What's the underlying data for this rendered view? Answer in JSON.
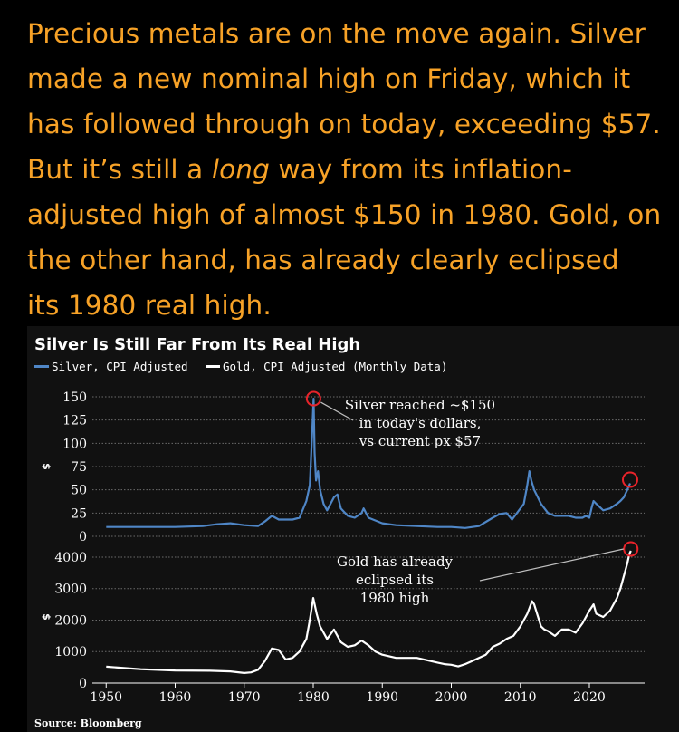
{
  "article": {
    "line1": "Precious metals are on the move again. Silver",
    "line2": "made a new nominal high on Friday, which it",
    "line3": "has followed through on today, exceeding $57.",
    "line4_before": "But it’s still a ",
    "line4_emphasis": "long",
    "line4_after": " way from its inflation-",
    "line5": "adjusted high of almost $150 in 1980. Gold, on",
    "line6": "the other hand, has already clearly eclipsed",
    "line7": "its 1980 real high."
  },
  "colors": {
    "text": "#f7a227",
    "chart_bg": "#111111",
    "silver_line": "#4f86c6",
    "gold_line": "#ffffff",
    "highlight_circle": "#e8232a"
  },
  "chart_data": [
    {
      "type": "line",
      "title": "Silver Is Still Far From Its Real High",
      "legend": [
        "Silver, CPI Adjusted",
        "Gold, CPI Adjusted (Monthly Data)"
      ],
      "ylabel": "$",
      "ylim": [
        0,
        150
      ],
      "yticks": [
        "0",
        "25",
        "50",
        "75",
        "100",
        "125",
        "150"
      ],
      "annotation": [
        "Silver reached ~$150",
        "in today's dollars,",
        "vs current px $57"
      ],
      "series": [
        {
          "name": "Silver, CPI Adjusted",
          "x": [
            1950,
            1955,
            1960,
            1964,
            1966,
            1968,
            1970,
            1972,
            1973,
            1974,
            1975,
            1977,
            1978,
            1979,
            1979.5,
            1979.9,
            1980.05,
            1980.2,
            1980.4,
            1980.7,
            1981,
            1981.5,
            1982,
            1983,
            1983.5,
            1984,
            1985,
            1986,
            1987,
            1987.3,
            1988,
            1990,
            1992,
            1995,
            1998,
            2000,
            2002,
            2004,
            2006,
            2007,
            2008,
            2008.8,
            2009,
            2010,
            2010.5,
            2011,
            2011.3,
            2011.6,
            2012,
            2013,
            2013.5,
            2014,
            2015,
            2016,
            2017,
            2018,
            2019,
            2019.5,
            2020,
            2020.3,
            2020.6,
            2021,
            2022,
            2023,
            2024,
            2024.5,
            2025,
            2025.5,
            2025.9
          ],
          "values": [
            10,
            10,
            10,
            11,
            13,
            14,
            12,
            11,
            16,
            22,
            18,
            18,
            20,
            38,
            55,
            120,
            148,
            90,
            60,
            70,
            50,
            35,
            28,
            42,
            45,
            30,
            22,
            20,
            25,
            30,
            20,
            14,
            12,
            11,
            10,
            10,
            9,
            11,
            20,
            24,
            25,
            18,
            20,
            30,
            35,
            55,
            70,
            60,
            50,
            35,
            30,
            25,
            22,
            22,
            22,
            20,
            20,
            22,
            20,
            30,
            38,
            35,
            28,
            30,
            35,
            38,
            42,
            50,
            57
          ]
        },
        {
          "name": "Gold, CPI Adjusted (Monthly Data)",
          "x": [
            1950,
            1955,
            1960,
            1965,
            1968,
            1970,
            1971,
            1972,
            1973,
            1974,
            1975,
            1976,
            1977,
            1978,
            1979,
            1979.5,
            1980,
            1980.5,
            1981,
            1982,
            1983,
            1984,
            1985,
            1986,
            1987,
            1988,
            1989,
            1990,
            1992,
            1995,
            1998,
            1999,
            2000,
            2001,
            2002,
            2003,
            2004,
            2005,
            2006,
            2007,
            2008,
            2009,
            2010,
            2011,
            2011.7,
            2012,
            2013,
            2013.5,
            2014,
            2015,
            2016,
            2017,
            2018,
            2019,
            2020,
            2020.6,
            2021,
            2022,
            2023,
            2024,
            2024.5,
            2025,
            2025.5,
            2025.8,
            2026
          ],
          "values": [
            520,
            440,
            400,
            390,
            370,
            320,
            340,
            420,
            700,
            1100,
            1050,
            750,
            800,
            1000,
            1400,
            2000,
            2700,
            2200,
            1800,
            1400,
            1700,
            1300,
            1150,
            1200,
            1350,
            1200,
            1000,
            900,
            800,
            800,
            650,
            600,
            580,
            530,
            600,
            700,
            800,
            900,
            1150,
            1250,
            1400,
            1500,
            1800,
            2200,
            2600,
            2500,
            1800,
            1700,
            1650,
            1500,
            1700,
            1700,
            1600,
            1900,
            2300,
            2500,
            2200,
            2100,
            2300,
            2700,
            3000,
            3400,
            3800,
            4100,
            4200
          ]
        }
      ]
    },
    {
      "type": "line",
      "xlabel": "",
      "ylabel": "$",
      "ylim": [
        0,
        4200
      ],
      "yticks": [
        "0",
        "1000",
        "2000",
        "3000",
        "4000"
      ],
      "xlim": [
        1948,
        2028
      ],
      "xticks": [
        "1950",
        "1960",
        "1970",
        "1980",
        "1990",
        "2000",
        "2010",
        "2020"
      ],
      "annotation": [
        "Gold has already",
        "eclipsed its",
        "1980 high"
      ],
      "source": "Source: Bloomberg"
    }
  ]
}
